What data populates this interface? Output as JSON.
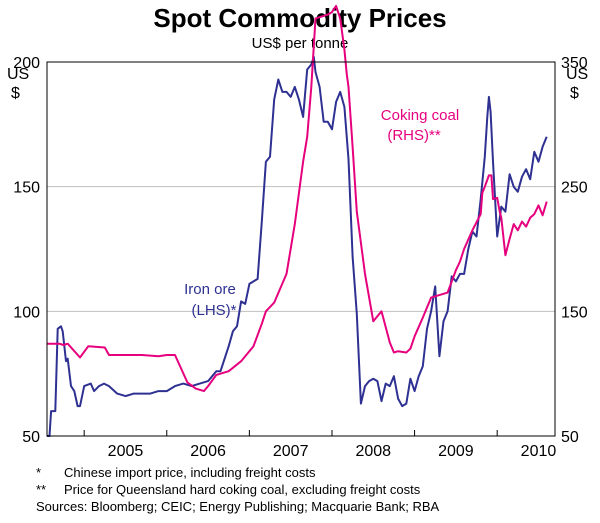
{
  "chart_data": {
    "type": "line",
    "title": "Spot Commodity Prices",
    "subtitle": "US$ per tonne",
    "left_axis": {
      "unit_line1": "US",
      "unit_line2": "$",
      "min": 50,
      "max": 200,
      "ticks": [
        50,
        100,
        150,
        200
      ]
    },
    "right_axis": {
      "unit_line1": "US",
      "unit_line2": "$",
      "min": 50,
      "max": 350,
      "ticks": [
        50,
        150,
        250,
        350
      ]
    },
    "x_axis": {
      "min": 2004.55,
      "max": 2010.7,
      "tick_labels": [
        "2005",
        "2006",
        "2007",
        "2008",
        "2009",
        "2010"
      ],
      "year_boundaries": [
        2005,
        2006,
        2007,
        2008,
        2009,
        2010
      ]
    },
    "grid": true,
    "colors": {
      "iron": "#2e3192",
      "coal": "#e6007e"
    },
    "series": [
      {
        "name": "Iron ore",
        "label_line1": "Iron ore",
        "label_line2": "(LHS)*",
        "axis": "left",
        "x": [
          2004.55,
          2004.58,
          2004.6,
          2004.65,
          2004.68,
          2004.72,
          2004.74,
          2004.78,
          2004.8,
          2004.84,
          2004.88,
          2004.92,
          2004.95,
          2005.0,
          2005.08,
          2005.12,
          2005.18,
          2005.24,
          2005.3,
          2005.4,
          2005.5,
          2005.6,
          2005.7,
          2005.8,
          2005.9,
          2006.0,
          2006.1,
          2006.2,
          2006.3,
          2006.4,
          2006.5,
          2006.55,
          2006.6,
          2006.65,
          2006.7,
          2006.75,
          2006.8,
          2006.85,
          2006.9,
          2006.95,
          2007.0,
          2007.05,
          2007.1,
          2007.15,
          2007.2,
          2007.25,
          2007.3,
          2007.35,
          2007.4,
          2007.45,
          2007.5,
          2007.55,
          2007.6,
          2007.65,
          2007.7,
          2007.75,
          2007.78,
          2007.8,
          2007.85,
          2007.9,
          2007.95,
          2008.0,
          2008.05,
          2008.1,
          2008.15,
          2008.2,
          2008.25,
          2008.3,
          2008.35,
          2008.4,
          2008.45,
          2008.5,
          2008.55,
          2008.6,
          2008.65,
          2008.7,
          2008.75,
          2008.8,
          2008.85,
          2008.9,
          2008.95,
          2009.0,
          2009.05,
          2009.1,
          2009.15,
          2009.2,
          2009.25,
          2009.3,
          2009.35,
          2009.4,
          2009.45,
          2009.5,
          2009.55,
          2009.6,
          2009.65,
          2009.7,
          2009.75,
          2009.8,
          2009.85,
          2009.88,
          2009.9,
          2009.92,
          2009.95,
          2010.0,
          2010.05,
          2010.1,
          2010.15,
          2010.2,
          2010.25,
          2010.3,
          2010.35,
          2010.4,
          2010.45,
          2010.5,
          2010.55,
          2010.6
        ],
        "values": [
          50,
          50,
          60,
          60,
          93,
          94,
          92,
          80,
          81,
          70,
          68,
          62,
          62,
          70,
          71,
          68,
          70,
          71,
          70,
          67,
          66,
          67,
          67,
          67,
          68,
          68,
          70,
          71,
          70,
          71,
          72,
          74,
          76,
          76,
          81,
          86,
          92,
          94,
          104,
          103,
          111,
          112,
          113,
          136,
          160,
          162,
          185,
          193,
          188,
          188,
          186,
          190,
          185,
          178,
          197,
          199,
          202,
          196,
          190,
          176,
          176,
          173,
          184,
          188,
          182,
          161,
          122,
          99,
          63,
          70,
          72,
          73,
          72,
          64,
          71,
          70,
          74,
          65,
          62,
          63,
          73,
          68,
          74,
          78,
          93,
          100,
          110,
          82,
          96,
          100,
          114,
          112,
          115,
          115,
          125,
          132,
          130,
          145,
          162,
          178,
          186,
          180,
          160,
          130,
          142,
          140,
          155,
          150,
          148,
          154,
          157,
          153,
          164,
          160,
          166,
          170
        ]
      },
      {
        "name": "Coking coal",
        "label_line1": "Coking coal",
        "label_line2": "(RHS)**",
        "axis": "right",
        "x": [
          2004.55,
          2004.7,
          2004.75,
          2004.8,
          2004.95,
          2005.05,
          2005.25,
          2005.3,
          2005.5,
          2005.7,
          2005.9,
          2006.0,
          2006.1,
          2006.25,
          2006.35,
          2006.45,
          2006.5,
          2006.6,
          2006.75,
          2006.9,
          2007.05,
          2007.15,
          2007.2,
          2007.3,
          2007.45,
          2007.55,
          2007.65,
          2007.7,
          2007.75,
          2007.8,
          2007.9,
          2007.95,
          2008.0,
          2008.02,
          2008.05,
          2008.1,
          2008.15,
          2008.18,
          2008.2,
          2008.25,
          2008.3,
          2008.4,
          2008.5,
          2008.6,
          2008.7,
          2008.75,
          2008.8,
          2008.9,
          2008.95,
          2009.0,
          2009.1,
          2009.2,
          2009.3,
          2009.4,
          2009.5,
          2009.55,
          2009.6,
          2009.7,
          2009.8,
          2009.82,
          2009.85,
          2009.9,
          2009.93,
          2009.95,
          2010.0,
          2010.03,
          2010.05,
          2010.1,
          2010.15,
          2010.2,
          2010.25,
          2010.3,
          2010.35,
          2010.4,
          2010.45,
          2010.5,
          2010.55,
          2010.6
        ],
        "values": [
          124,
          124,
          123,
          124,
          113,
          122,
          121,
          115,
          115,
          115,
          114,
          115,
          115,
          93,
          88,
          86,
          90,
          99,
          102,
          110,
          122,
          140,
          150,
          157,
          180,
          220,
          270,
          290,
          330,
          385,
          387,
          388,
          390,
          392,
          395,
          385,
          360,
          340,
          330,
          282,
          230,
          180,
          142,
          150,
          125,
          117,
          118,
          117,
          120,
          130,
          145,
          161,
          163,
          165,
          183,
          190,
          200,
          215,
          228,
          245,
          250,
          259,
          259,
          240,
          241,
          230,
          225,
          195,
          208,
          220,
          215,
          222,
          218,
          225,
          228,
          235,
          227,
          238
        ]
      }
    ]
  },
  "notes": {
    "note1_mark": "*",
    "note1_text": "Chinese import price, including freight costs",
    "note2_mark": "**",
    "note2_text": "Price for Queensland hard coking coal, excluding freight costs",
    "sources": "Sources: Bloomberg; CEIC; Energy Publishing; Macquarie Bank; RBA"
  }
}
